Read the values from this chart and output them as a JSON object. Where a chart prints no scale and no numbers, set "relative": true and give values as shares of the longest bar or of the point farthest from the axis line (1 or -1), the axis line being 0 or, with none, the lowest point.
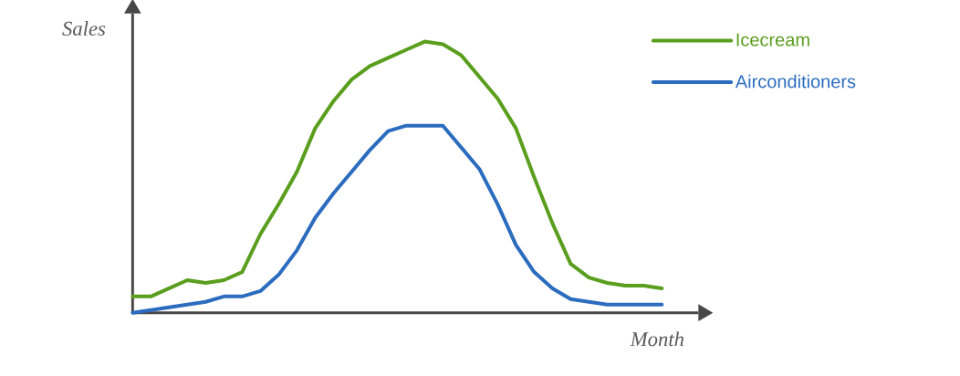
{
  "chart_data": {
    "type": "line",
    "relative": true,
    "xlabel": "Month",
    "ylabel": "Sales",
    "legend": "top right",
    "marker": "none",
    "line_style": "solid",
    "categories": [
      null,
      null,
      null,
      null,
      null,
      null,
      null,
      null,
      null,
      null,
      null,
      null,
      null,
      null,
      null,
      null,
      null,
      null,
      null,
      null,
      null,
      null,
      null,
      null,
      null,
      null,
      null,
      null,
      null,
      null
    ],
    "series": [
      {
        "name": "Icecream",
        "color": "#5a9e1e",
        "values": [
          0.06,
          0.06,
          0.09,
          0.12,
          0.11,
          0.12,
          0.15,
          0.29,
          0.4,
          0.52,
          0.68,
          0.78,
          0.86,
          0.91,
          0.94,
          0.97,
          1,
          0.99,
          0.95,
          0.87,
          0.79,
          0.68,
          0.5,
          0.33,
          0.18,
          0.13,
          0.11,
          0.1,
          0.1,
          0.09
        ]
      },
      {
        "name": "Airconditioners",
        "color": "#2b6cbf",
        "values": [
          0,
          0.01,
          0.02,
          0.03,
          0.04,
          0.06,
          0.06,
          0.08,
          0.14,
          0.23,
          0.35,
          0.44,
          0.52,
          0.6,
          0.67,
          0.69,
          0.69,
          0.69,
          0.61,
          0.53,
          0.4,
          0.25,
          0.15,
          0.09,
          0.05,
          0.04,
          0.03,
          0.03,
          0.03,
          0.03
        ]
      }
    ]
  }
}
